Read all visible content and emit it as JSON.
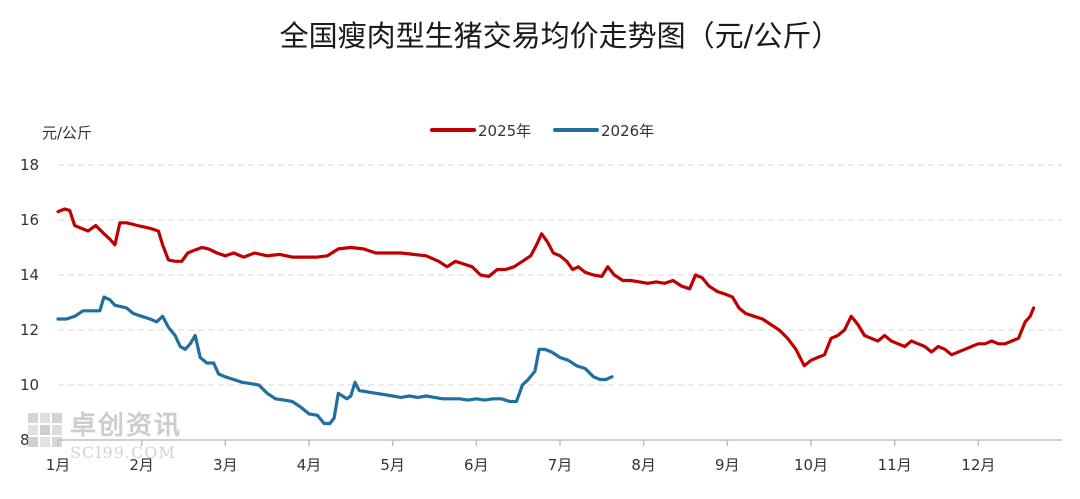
{
  "chart_data": {
    "type": "line",
    "title": "全国瘦肉型生猪交易均价走势图（元/公斤）",
    "ylabel": "元/公斤",
    "ylim": [
      8,
      18
    ],
    "yticks": [
      "18",
      "16",
      "14",
      "12",
      "10",
      "8"
    ],
    "grid": true,
    "legend_position": "top-center",
    "months": [
      "1月",
      "2月",
      "3月",
      "4月",
      "5月",
      "6月",
      "7月",
      "8月",
      "9月",
      "10月",
      "11月",
      "12月"
    ],
    "series": [
      {
        "name": "2025年",
        "color": "#c00000",
        "points": [
          [
            0.0,
            16.3
          ],
          [
            0.08,
            16.4
          ],
          [
            0.14,
            16.35
          ],
          [
            0.2,
            15.8
          ],
          [
            0.28,
            15.7
          ],
          [
            0.36,
            15.6
          ],
          [
            0.45,
            15.8
          ],
          [
            0.55,
            15.5
          ],
          [
            0.62,
            15.3
          ],
          [
            0.68,
            15.1
          ],
          [
            0.74,
            15.9
          ],
          [
            0.82,
            15.9
          ],
          [
            0.95,
            15.8
          ],
          [
            1.1,
            15.7
          ],
          [
            1.2,
            15.6
          ],
          [
            1.25,
            15.1
          ],
          [
            1.32,
            14.55
          ],
          [
            1.4,
            14.5
          ],
          [
            1.48,
            14.5
          ],
          [
            1.55,
            14.8
          ],
          [
            1.63,
            14.9
          ],
          [
            1.72,
            15.0
          ],
          [
            1.8,
            14.95
          ],
          [
            1.9,
            14.8
          ],
          [
            2.0,
            14.7
          ],
          [
            2.1,
            14.8
          ],
          [
            2.22,
            14.65
          ],
          [
            2.35,
            14.8
          ],
          [
            2.5,
            14.7
          ],
          [
            2.65,
            14.75
          ],
          [
            2.8,
            14.65
          ],
          [
            2.95,
            14.65
          ],
          [
            3.1,
            14.65
          ],
          [
            3.22,
            14.7
          ],
          [
            3.35,
            14.95
          ],
          [
            3.5,
            15.0
          ],
          [
            3.65,
            14.95
          ],
          [
            3.8,
            14.8
          ],
          [
            3.95,
            14.8
          ],
          [
            4.1,
            14.8
          ],
          [
            4.25,
            14.75
          ],
          [
            4.4,
            14.7
          ],
          [
            4.55,
            14.5
          ],
          [
            4.65,
            14.3
          ],
          [
            4.75,
            14.5
          ],
          [
            4.85,
            14.4
          ],
          [
            4.95,
            14.3
          ],
          [
            5.05,
            14.0
          ],
          [
            5.15,
            13.95
          ],
          [
            5.25,
            14.2
          ],
          [
            5.35,
            14.2
          ],
          [
            5.45,
            14.3
          ],
          [
            5.55,
            14.5
          ],
          [
            5.65,
            14.7
          ],
          [
            5.72,
            15.1
          ],
          [
            5.78,
            15.5
          ],
          [
            5.85,
            15.2
          ],
          [
            5.92,
            14.8
          ],
          [
            6.0,
            14.7
          ],
          [
            6.08,
            14.5
          ],
          [
            6.15,
            14.2
          ],
          [
            6.22,
            14.3
          ],
          [
            6.3,
            14.1
          ],
          [
            6.4,
            14.0
          ],
          [
            6.5,
            13.95
          ],
          [
            6.57,
            14.3
          ],
          [
            6.65,
            14.0
          ],
          [
            6.75,
            13.8
          ],
          [
            6.85,
            13.8
          ],
          [
            6.95,
            13.75
          ],
          [
            7.05,
            13.7
          ],
          [
            7.15,
            13.75
          ],
          [
            7.25,
            13.7
          ],
          [
            7.35,
            13.8
          ],
          [
            7.45,
            13.6
          ],
          [
            7.55,
            13.5
          ],
          [
            7.62,
            14.0
          ],
          [
            7.7,
            13.9
          ],
          [
            7.78,
            13.6
          ],
          [
            7.88,
            13.4
          ],
          [
            7.98,
            13.3
          ],
          [
            8.06,
            13.2
          ],
          [
            8.14,
            12.8
          ],
          [
            8.22,
            12.6
          ],
          [
            8.32,
            12.5
          ],
          [
            8.42,
            12.4
          ],
          [
            8.52,
            12.2
          ],
          [
            8.62,
            12.0
          ],
          [
            8.72,
            11.7
          ],
          [
            8.82,
            11.3
          ],
          [
            8.92,
            10.7
          ],
          [
            9.0,
            10.9
          ],
          [
            9.08,
            11.0
          ],
          [
            9.16,
            11.1
          ],
          [
            9.24,
            11.7
          ],
          [
            9.32,
            11.8
          ],
          [
            9.4,
            12.0
          ],
          [
            9.48,
            12.5
          ],
          [
            9.56,
            12.2
          ],
          [
            9.64,
            11.8
          ],
          [
            9.72,
            11.7
          ],
          [
            9.8,
            11.6
          ],
          [
            9.88,
            11.8
          ],
          [
            9.96,
            11.6
          ],
          [
            10.04,
            11.5
          ],
          [
            10.12,
            11.4
          ],
          [
            10.2,
            11.6
          ],
          [
            10.28,
            11.5
          ],
          [
            10.36,
            11.4
          ],
          [
            10.44,
            11.2
          ],
          [
            10.52,
            11.4
          ],
          [
            10.6,
            11.3
          ],
          [
            10.68,
            11.1
          ],
          [
            10.76,
            11.2
          ],
          [
            10.84,
            11.3
          ],
          [
            10.92,
            11.4
          ],
          [
            11.0,
            11.5
          ],
          [
            11.08,
            11.5
          ],
          [
            11.16,
            11.6
          ],
          [
            11.24,
            11.5
          ],
          [
            11.32,
            11.5
          ],
          [
            11.4,
            11.6
          ],
          [
            11.48,
            11.7
          ],
          [
            11.56,
            12.3
          ],
          [
            11.62,
            12.5
          ],
          [
            11.66,
            12.8
          ]
        ]
      },
      {
        "name": "2026年",
        "color": "#1f6fa0",
        "points": [
          [
            0.0,
            12.4
          ],
          [
            0.1,
            12.4
          ],
          [
            0.2,
            12.5
          ],
          [
            0.3,
            12.7
          ],
          [
            0.4,
            12.7
          ],
          [
            0.5,
            12.7
          ],
          [
            0.55,
            13.2
          ],
          [
            0.62,
            13.1
          ],
          [
            0.68,
            12.9
          ],
          [
            0.75,
            12.85
          ],
          [
            0.82,
            12.8
          ],
          [
            0.9,
            12.6
          ],
          [
            1.0,
            12.5
          ],
          [
            1.1,
            12.4
          ],
          [
            1.18,
            12.3
          ],
          [
            1.25,
            12.5
          ],
          [
            1.32,
            12.1
          ],
          [
            1.4,
            11.8
          ],
          [
            1.46,
            11.4
          ],
          [
            1.52,
            11.3
          ],
          [
            1.58,
            11.5
          ],
          [
            1.64,
            11.8
          ],
          [
            1.7,
            11.0
          ],
          [
            1.78,
            10.8
          ],
          [
            1.86,
            10.8
          ],
          [
            1.92,
            10.4
          ],
          [
            2.0,
            10.3
          ],
          [
            2.1,
            10.2
          ],
          [
            2.2,
            10.1
          ],
          [
            2.3,
            10.05
          ],
          [
            2.4,
            10.0
          ],
          [
            2.5,
            9.7
          ],
          [
            2.6,
            9.5
          ],
          [
            2.7,
            9.45
          ],
          [
            2.8,
            9.4
          ],
          [
            2.9,
            9.2
          ],
          [
            3.0,
            8.95
          ],
          [
            3.1,
            8.9
          ],
          [
            3.18,
            8.6
          ],
          [
            3.25,
            8.6
          ],
          [
            3.3,
            8.8
          ],
          [
            3.35,
            9.7
          ],
          [
            3.4,
            9.6
          ],
          [
            3.45,
            9.5
          ],
          [
            3.5,
            9.6
          ],
          [
            3.55,
            10.1
          ],
          [
            3.6,
            9.8
          ],
          [
            3.7,
            9.75
          ],
          [
            3.8,
            9.7
          ],
          [
            3.9,
            9.65
          ],
          [
            4.0,
            9.6
          ],
          [
            4.1,
            9.55
          ],
          [
            4.2,
            9.6
          ],
          [
            4.3,
            9.55
          ],
          [
            4.4,
            9.6
          ],
          [
            4.5,
            9.55
          ],
          [
            4.6,
            9.5
          ],
          [
            4.7,
            9.5
          ],
          [
            4.8,
            9.5
          ],
          [
            4.9,
            9.45
          ],
          [
            5.0,
            9.5
          ],
          [
            5.1,
            9.45
          ],
          [
            5.2,
            9.5
          ],
          [
            5.3,
            9.5
          ],
          [
            5.4,
            9.4
          ],
          [
            5.48,
            9.4
          ],
          [
            5.55,
            10.0
          ],
          [
            5.62,
            10.2
          ],
          [
            5.7,
            10.5
          ],
          [
            5.75,
            11.3
          ],
          [
            5.82,
            11.3
          ],
          [
            5.9,
            11.2
          ],
          [
            6.0,
            11.0
          ],
          [
            6.1,
            10.9
          ],
          [
            6.2,
            10.7
          ],
          [
            6.3,
            10.6
          ],
          [
            6.4,
            10.3
          ],
          [
            6.48,
            10.2
          ],
          [
            6.55,
            10.2
          ],
          [
            6.62,
            10.3
          ]
        ]
      }
    ]
  },
  "watermark": {
    "main": "卓创资讯",
    "sub": "SCI99.COM"
  }
}
